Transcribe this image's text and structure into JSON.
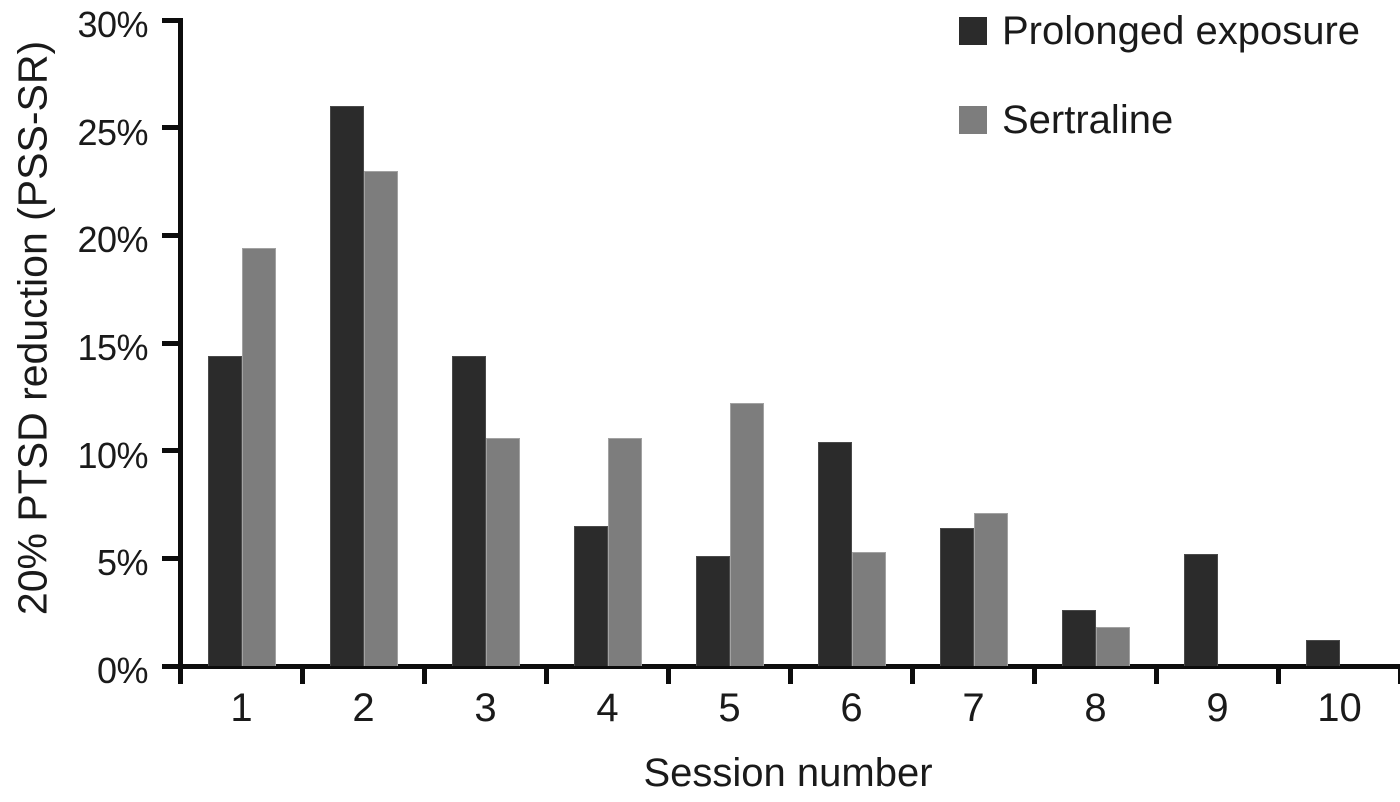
{
  "figure": {
    "background": "#ffffff",
    "axis_color": "#0d0d0d",
    "text_color": "#1a1a1a"
  },
  "chart_data": {
    "type": "bar",
    "title": "",
    "xlabel": "Session number",
    "ylabel": "20% PTSD reduction (PSS-SR)",
    "categories": [
      "1",
      "2",
      "3",
      "4",
      "5",
      "6",
      "7",
      "8",
      "9",
      "10"
    ],
    "series": [
      {
        "name": "Prolonged exposure",
        "color": "#2b2b2b",
        "values": [
          14.4,
          26.0,
          14.4,
          6.5,
          5.1,
          10.4,
          6.4,
          2.6,
          5.2,
          1.2
        ]
      },
      {
        "name": "Sertraline",
        "color": "#7d7d7d",
        "values": [
          19.4,
          23.0,
          10.6,
          10.6,
          12.2,
          5.3,
          7.1,
          1.8,
          0,
          0
        ]
      }
    ],
    "ylim": [
      0,
      30
    ],
    "ytick_step": 5,
    "ytick_labels": [
      "0%",
      "5%",
      "10%",
      "15%",
      "20%",
      "25%",
      "30%"
    ],
    "yticks": [
      0,
      5,
      10,
      15,
      20,
      25,
      30
    ],
    "legend_position": "top-right",
    "grid": false
  }
}
